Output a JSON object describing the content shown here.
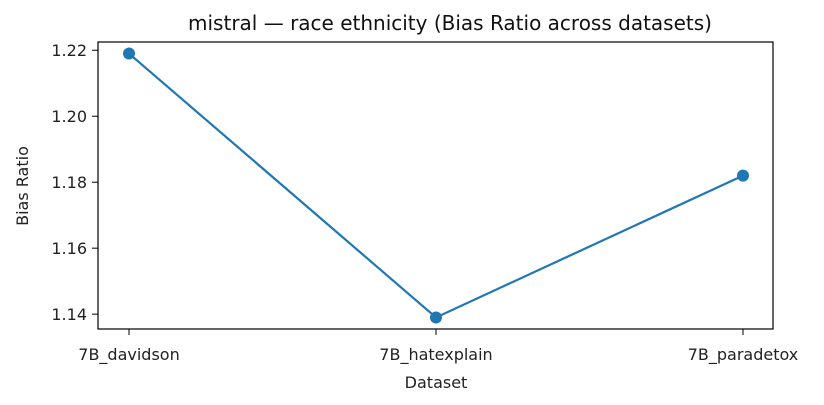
{
  "chart_data": {
    "type": "line",
    "title": "mistral — race ethnicity (Bias Ratio across datasets)",
    "xlabel": "Dataset",
    "ylabel": "Bias Ratio",
    "categories": [
      "7B_davidson",
      "7B_hatexplain",
      "7B_paradetox"
    ],
    "series": [
      {
        "values": [
          1.219,
          1.139,
          1.182
        ],
        "color": "#1f77b4"
      }
    ],
    "ylim": [
      1.1355,
      1.2225
    ],
    "yticks": [
      1.14,
      1.16,
      1.18,
      1.2,
      1.22
    ],
    "ytick_labels": [
      "1.14",
      "1.16",
      "1.18",
      "1.20",
      "1.22"
    ],
    "grid": false,
    "legend": "none"
  }
}
